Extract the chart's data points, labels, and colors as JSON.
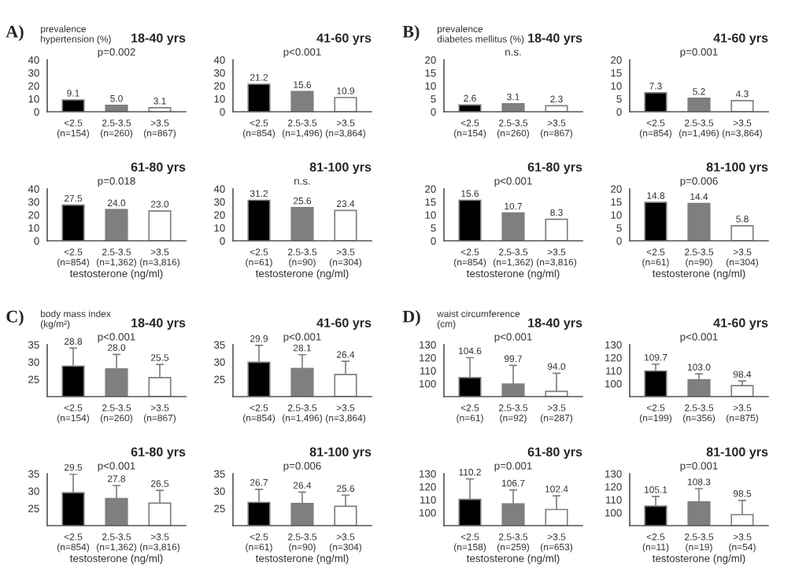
{
  "chart_data": [
    {
      "type": "bar",
      "title": "18-40 yrs",
      "ylabel": "prevalence\nhypertension (%)",
      "annotations": [
        "A)",
        "p=0.002"
      ],
      "categories": [
        "<2.5\n(n=154)",
        "2.5-3.5\n(n=260)",
        ">3.5\n(n=867)"
      ],
      "values": [
        9.1,
        5.0,
        3.1
      ],
      "value_labels": [
        "9.1",
        "5.0",
        "3.1"
      ],
      "colors": [
        "#000000",
        "#7f7f7f",
        "#ffffff"
      ],
      "ylim": [
        0,
        40
      ],
      "yticks": [
        0,
        10,
        20,
        30,
        40
      ]
    },
    {
      "type": "bar",
      "title": "41-60 yrs",
      "annotations": [
        "p<0.001"
      ],
      "categories": [
        "<2.5\n(n=854)",
        "2.5-3.5\n(n=1,496)",
        ">3.5\n(n=3,864)"
      ],
      "values": [
        21.2,
        15.6,
        10.9
      ],
      "colors": [
        "#000000",
        "#7f7f7f",
        "#ffffff"
      ],
      "ylim": [
        0,
        40
      ],
      "yticks": [
        0,
        10,
        20,
        30,
        40
      ],
      "data_labels": true
    },
    {
      "type": "bar",
      "title": "61-80 yrs",
      "xlabel": "testosterone (ng/ml)",
      "annotations": [
        "p=0.018"
      ],
      "categories": [
        "<2.5\n(n=854)",
        "2.5-3.5\n(n=1,362)",
        ">3.5\n(n=3,816)"
      ],
      "values": [
        27.5,
        24.0,
        23.0
      ],
      "value_labels": [
        "27.5",
        "24.0",
        "23.0"
      ],
      "colors": [
        "#000000",
        "#7f7f7f",
        "#ffffff"
      ],
      "ylim": [
        0,
        40
      ],
      "yticks": [
        0,
        10,
        20,
        30,
        40
      ]
    },
    {
      "type": "bar",
      "title": "81-100 yrs",
      "xlabel": "testosterone (ng/ml)",
      "annotations": [
        "n.s."
      ],
      "categories": [
        "<2.5\n(n=61)",
        "2.5-3.5\n(n=90)",
        ">3.5\n(n=304)"
      ],
      "values": [
        31.2,
        25.6,
        23.4
      ],
      "colors": [
        "#000000",
        "#7f7f7f",
        "#ffffff"
      ],
      "ylim": [
        0,
        40
      ],
      "yticks": [
        0,
        10,
        20,
        30,
        40
      ],
      "data_labels": true
    },
    {
      "type": "bar",
      "title": "18-40 yrs",
      "ylabel": "prevalence\ndiabetes mellitus (%)",
      "annotations": [
        "B)",
        "n.s."
      ],
      "categories": [
        "<2.5\n(n=154)",
        "2.5-3.5\n(n=260)",
        ">3.5\n(n=867)"
      ],
      "values": [
        2.6,
        3.1,
        2.3
      ],
      "colors": [
        "#000000",
        "#7f7f7f",
        "#ffffff"
      ],
      "ylim": [
        0,
        20
      ],
      "yticks": [
        0,
        5,
        10,
        15,
        20
      ],
      "data_labels": true
    },
    {
      "type": "bar",
      "title": "41-60 yrs",
      "annotations": [
        "p=0.001"
      ],
      "categories": [
        "<2.5\n(n=854)",
        "2.5-3.5\n(n=1,496)",
        ">3.5\n(n=3,864)"
      ],
      "values": [
        7.3,
        5.2,
        4.3
      ],
      "colors": [
        "#000000",
        "#7f7f7f",
        "#ffffff"
      ],
      "ylim": [
        0,
        20
      ],
      "yticks": [
        0,
        5,
        10,
        15,
        20
      ],
      "data_labels": true
    },
    {
      "type": "bar",
      "title": "61-80 yrs",
      "xlabel": "testosterone (ng/ml)",
      "annotations": [
        "p<0.001"
      ],
      "categories": [
        "<2.5\n(n=854)",
        "2.5-3.5\n(n=1,362)",
        ">3.5\n(n=3,816)"
      ],
      "values": [
        15.6,
        10.7,
        8.3
      ],
      "colors": [
        "#000000",
        "#7f7f7f",
        "#ffffff"
      ],
      "ylim": [
        0,
        20
      ],
      "yticks": [
        0,
        5,
        10,
        15,
        20
      ],
      "data_labels": true
    },
    {
      "type": "bar",
      "title": "81-100 yrs",
      "xlabel": "testosterone (ng/ml)",
      "annotations": [
        "p=0.006"
      ],
      "categories": [
        "<2.5\n(n=61)",
        "2.5-3.5\n(n=90)",
        ">3.5\n(n=304)"
      ],
      "values": [
        14.8,
        14.4,
        5.8
      ],
      "colors": [
        "#000000",
        "#7f7f7f",
        "#ffffff"
      ],
      "ylim": [
        0,
        20
      ],
      "yticks": [
        0,
        5,
        10,
        15,
        20
      ],
      "data_labels": true
    },
    {
      "type": "bar",
      "title": "18-40 yrs",
      "ylabel": "body mass index\n(kg/m²)",
      "annotations": [
        "C)",
        "p<0.001"
      ],
      "categories": [
        "<2.5\n(n=154)",
        "2.5-3.5\n(n=260)",
        ">3.5\n(n=867)"
      ],
      "values": [
        28.8,
        28.0,
        25.5
      ],
      "value_labels": [
        "28.8",
        "28.0",
        "25.5"
      ],
      "errors": [
        [
          28.8,
          34.0
        ],
        [
          28.0,
          32.2
        ],
        [
          25.5,
          29.3
        ]
      ],
      "colors": [
        "#000000",
        "#7f7f7f",
        "#ffffff"
      ],
      "ylim": [
        20,
        35
      ],
      "yticks": [
        25,
        30,
        35
      ]
    },
    {
      "type": "bar",
      "title": "41-60 yrs",
      "annotations": [
        "p<0.001"
      ],
      "categories": [
        "<2.5\n(n=854)",
        "2.5-3.5\n(n=1,496)",
        ">3.5\n(n=3,864)"
      ],
      "values": [
        29.9,
        28.1,
        26.4
      ],
      "errors": [
        [
          29.9,
          34.8
        ],
        [
          28.1,
          32.1
        ],
        [
          26.4,
          30.2
        ]
      ],
      "colors": [
        "#000000",
        "#7f7f7f",
        "#ffffff"
      ],
      "ylim": [
        20,
        35
      ],
      "yticks": [
        25,
        30,
        35
      ],
      "data_labels": true
    },
    {
      "type": "bar",
      "title": "61-80 yrs",
      "xlabel": "testosterone (ng/ml)",
      "annotations": [
        "p<0.001"
      ],
      "categories": [
        "<2.5\n(n=854)",
        "2.5-3.5\n(n=1,362)",
        ">3.5\n(n=3,816)"
      ],
      "values": [
        29.5,
        27.8,
        26.5
      ],
      "errors": [
        [
          29.5,
          34.9
        ],
        [
          27.8,
          31.6
        ],
        [
          26.5,
          30.2
        ]
      ],
      "colors": [
        "#000000",
        "#7f7f7f",
        "#ffffff"
      ],
      "ylim": [
        20,
        35
      ],
      "yticks": [
        25,
        30,
        35
      ],
      "data_labels": true
    },
    {
      "type": "bar",
      "title": "81-100 yrs",
      "xlabel": "testosterone (ng/ml)",
      "annotations": [
        "p=0.006"
      ],
      "categories": [
        "<2.5\n(n=61)",
        "2.5-3.5\n(n=90)",
        ">3.5\n(n=304)"
      ],
      "values": [
        26.7,
        26.4,
        25.6
      ],
      "errors": [
        [
          26.7,
          30.5
        ],
        [
          26.4,
          29.7
        ],
        [
          25.6,
          28.8
        ]
      ],
      "colors": [
        "#000000",
        "#7f7f7f",
        "#ffffff"
      ],
      "ylim": [
        20,
        35
      ],
      "yticks": [
        25,
        30,
        35
      ],
      "data_labels": true
    },
    {
      "type": "bar",
      "title": "18-40 yrs",
      "ylabel": "waist circumference\n(cm)",
      "annotations": [
        "D)",
        "p<0.001"
      ],
      "categories": [
        "<2.5\n(n=61)",
        "2.5-3.5\n(n=92)",
        ">3.5\n(n=287)"
      ],
      "values": [
        104.6,
        99.7,
        94.0
      ],
      "value_labels": [
        "104.6",
        "99.7",
        "94.0"
      ],
      "errors": [
        [
          104.6,
          120
        ],
        [
          99.7,
          114
        ],
        [
          94.0,
          108
        ]
      ],
      "colors": [
        "#000000",
        "#7f7f7f",
        "#ffffff"
      ],
      "ylim": [
        90,
        130
      ],
      "yticks": [
        100,
        110,
        120,
        130
      ]
    },
    {
      "type": "bar",
      "title": "41-60 yrs",
      "annotations": [
        "p<0.001"
      ],
      "categories": [
        "<2.5\n(n=199)",
        "2.5-3.5\n(n=356)",
        ">3.5\n(n=875)"
      ],
      "values": [
        109.7,
        103.0,
        98.4
      ],
      "value_labels": [
        "109.7",
        "103.0",
        "98.4"
      ],
      "errors": [
        [
          109.7,
          115
        ],
        [
          103.0,
          107.5
        ],
        [
          98.4,
          102
        ]
      ],
      "colors": [
        "#000000",
        "#7f7f7f",
        "#ffffff"
      ],
      "ylim": [
        90,
        130
      ],
      "yticks": [
        100,
        110,
        120,
        130
      ]
    },
    {
      "type": "bar",
      "title": "61-80 yrs",
      "xlabel": "testosterone (ng/ml)",
      "annotations": [
        "p=0.001"
      ],
      "categories": [
        "<2.5\n(n=158)",
        "2.5-3.5\n(n=259)",
        ">3.5\n(n=653)"
      ],
      "values": [
        110.2,
        106.7,
        102.4
      ],
      "errors": [
        [
          110.2,
          126
        ],
        [
          106.7,
          117.5
        ],
        [
          102.4,
          113
        ]
      ],
      "colors": [
        "#000000",
        "#7f7f7f",
        "#ffffff"
      ],
      "ylim": [
        90,
        130
      ],
      "yticks": [
        100,
        110,
        120,
        130
      ],
      "data_labels": true
    },
    {
      "type": "bar",
      "title": "81-100 yrs",
      "xlabel": "testosterone (ng/ml)",
      "annotations": [
        "p=0.001"
      ],
      "categories": [
        "<2.5\n(n=11)",
        "2.5-3.5\n(n=19)",
        ">3.5\n(n=54)"
      ],
      "values": [
        105.1,
        108.3,
        98.5
      ],
      "errors": [
        [
          105.1,
          112.5
        ],
        [
          108.3,
          118.5
        ],
        [
          98.5,
          109.5
        ]
      ],
      "colors": [
        "#000000",
        "#7f7f7f",
        "#ffffff"
      ],
      "ylim": [
        90,
        130
      ],
      "yticks": [
        100,
        110,
        120,
        130
      ],
      "data_labels": true
    }
  ]
}
